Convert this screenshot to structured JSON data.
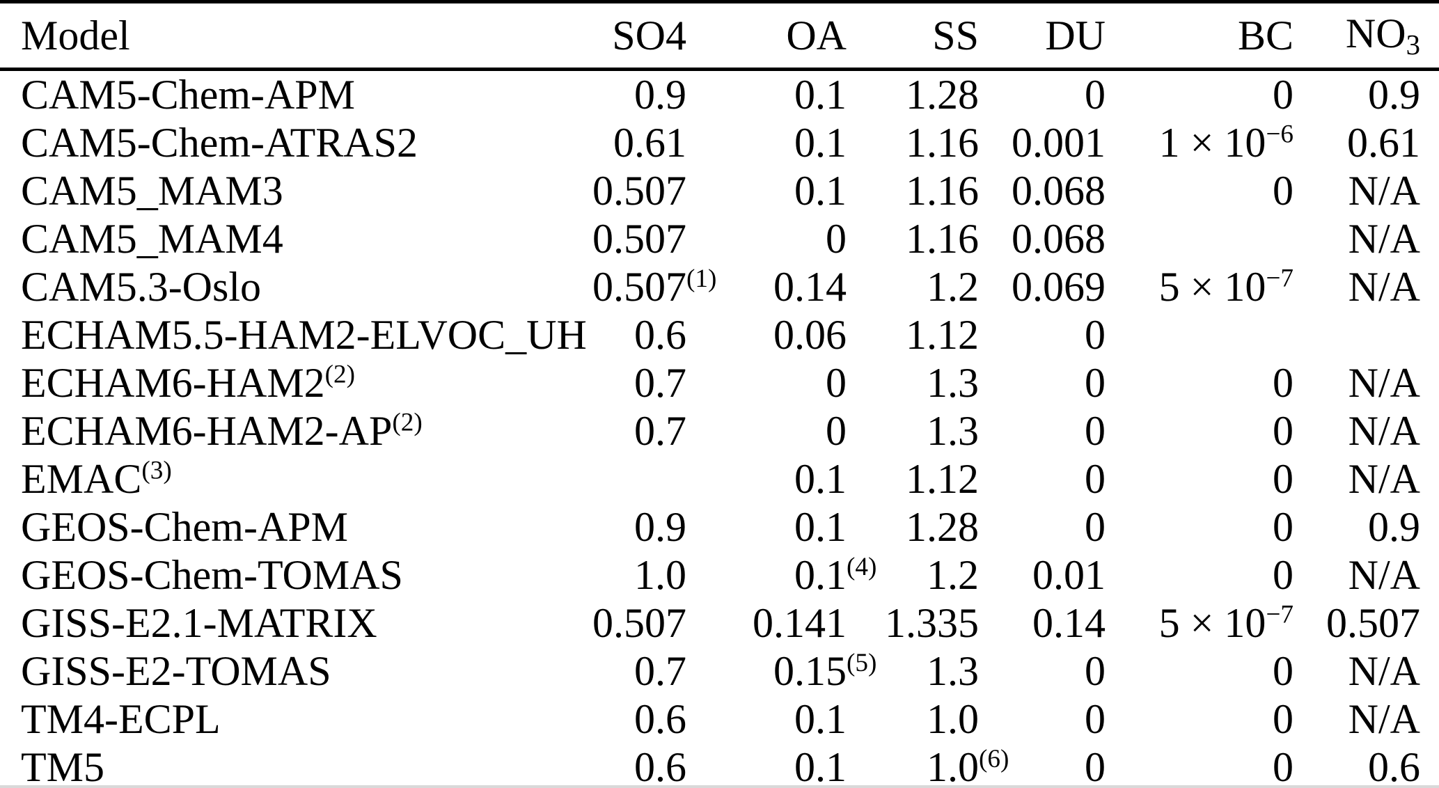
{
  "table": {
    "columns": [
      {
        "label": "Model",
        "align": "left"
      },
      {
        "label": "SO4",
        "align": "right"
      },
      {
        "label": "OA",
        "align": "right"
      },
      {
        "label": "SS",
        "align": "right"
      },
      {
        "label": "DU",
        "align": "right"
      },
      {
        "label": "BC",
        "align": "right"
      },
      {
        "label": "NO",
        "sub": "3",
        "align": "right"
      }
    ],
    "rows": [
      {
        "model": {
          "v": "CAM5-Chem-APM"
        },
        "values": [
          "0.9",
          "0.1",
          "1.28",
          "0",
          "0",
          "0.9"
        ]
      },
      {
        "model": {
          "v": "CAM5-Chem-ATRAS2"
        },
        "values": [
          "0.61",
          "0.1",
          "1.16",
          "0.001",
          {
            "v": "1 × 10",
            "exp": "−6"
          },
          "0.61"
        ]
      },
      {
        "model": {
          "v": "CAM5_MAM3"
        },
        "values": [
          "0.507",
          "0.1",
          "1.16",
          "0.068",
          "0",
          "N/A"
        ]
      },
      {
        "model": {
          "v": "CAM5_MAM4"
        },
        "values": [
          "0.507",
          "0",
          "1.16",
          "0.068",
          "",
          "N/A"
        ]
      },
      {
        "model": {
          "v": "CAM5.3-Oslo"
        },
        "values": [
          {
            "v": "0.507",
            "fn": "(1)"
          },
          "0.14",
          "1.2",
          "0.069",
          {
            "v": "5 × 10",
            "exp": "−7"
          },
          "N/A"
        ]
      },
      {
        "model": {
          "v": "ECHAM5.5-HAM2-ELVOC_UH"
        },
        "values": [
          "0.6",
          "0.06",
          "1.12",
          "0",
          "",
          ""
        ]
      },
      {
        "model": {
          "v": "ECHAM6-HAM2",
          "fn": "(2)"
        },
        "values": [
          "0.7",
          "0",
          "1.3",
          "0",
          "0",
          "N/A"
        ]
      },
      {
        "model": {
          "v": "ECHAM6-HAM2-AP",
          "fn": "(2)"
        },
        "values": [
          "0.7",
          "0",
          "1.3",
          "0",
          "0",
          "N/A"
        ]
      },
      {
        "model": {
          "v": "EMAC",
          "fn": "(3)"
        },
        "values": [
          "",
          "0.1",
          "1.12",
          "0",
          "0",
          "N/A"
        ]
      },
      {
        "model": {
          "v": "GEOS-Chem-APM"
        },
        "values": [
          "0.9",
          "0.1",
          "1.28",
          "0",
          "0",
          "0.9"
        ]
      },
      {
        "model": {
          "v": "GEOS-Chem-TOMAS"
        },
        "values": [
          "1.0",
          {
            "v": "0.1",
            "fn": "(4)"
          },
          "1.2",
          "0.01",
          "0",
          "N/A"
        ]
      },
      {
        "model": {
          "v": "GISS-E2.1-MATRIX"
        },
        "values": [
          "0.507",
          "0.141",
          "1.335",
          "0.14",
          {
            "v": "5 × 10",
            "exp": "−7"
          },
          "0.507"
        ]
      },
      {
        "model": {
          "v": "GISS-E2-TOMAS"
        },
        "values": [
          "0.7",
          {
            "v": "0.15",
            "fn": "(5)"
          },
          "1.3",
          "0",
          "0",
          "N/A"
        ]
      },
      {
        "model": {
          "v": "TM4-ECPL"
        },
        "values": [
          "0.6",
          "0.1",
          "1.0",
          "0",
          "0",
          "N/A"
        ]
      },
      {
        "model": {
          "v": "TM5"
        },
        "values": [
          "0.6",
          "0.1",
          {
            "v": "1.0",
            "fn": "(6)"
          },
          "0",
          "0",
          "0.6"
        ]
      }
    ]
  }
}
